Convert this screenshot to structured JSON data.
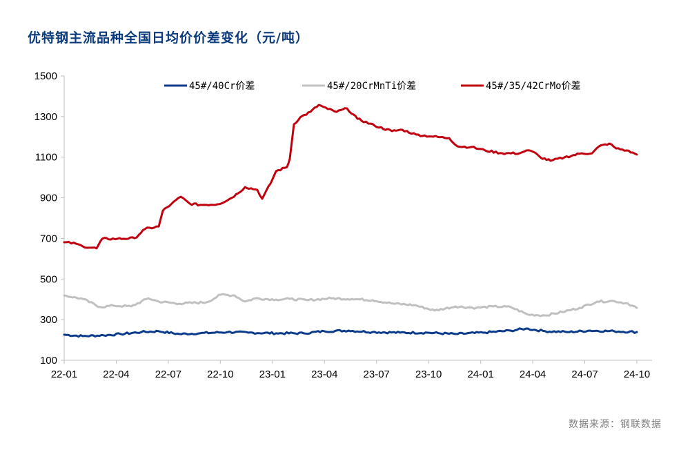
{
  "title": "优特钢主流品种全国日均价价差变化（元/吨）",
  "source": "数据来源：钢联数据",
  "colors": {
    "series_1": "#0b3b8a",
    "series_2": "#c0c0c0",
    "series_3": "#c0000f",
    "axis": "#bfbfbf",
    "title": "#0b3b7d",
    "source": "#7f7f7f"
  },
  "legend": [
    {
      "label": "45#/40Cr价差",
      "color": "#0b3b8a"
    },
    {
      "label": "45#/20CrMnTi价差",
      "color": "#c0c0c0"
    },
    {
      "label": "45#/35/42CrMo价差",
      "color": "#c0000f"
    }
  ],
  "y_ticks": [
    "1500",
    "1300",
    "1100",
    "900",
    "700",
    "500",
    "300",
    "100"
  ],
  "x_ticks": [
    "22-01",
    "22-04",
    "22-07",
    "22-10",
    "23-01",
    "23-04",
    "23-07",
    "23-10",
    "24-01",
    "24-04",
    "24-07",
    "24-10"
  ],
  "chart_data": {
    "type": "line",
    "title": "优特钢主流品种全国日均价价差变化（元/吨）",
    "xlabel": "",
    "ylabel": "元/吨",
    "ylim": [
      100,
      1500
    ],
    "y_ticks": [
      100,
      300,
      500,
      700,
      900,
      1100,
      1300,
      1500
    ],
    "x_tick_labels": [
      "22-01",
      "22-04",
      "22-07",
      "22-10",
      "23-01",
      "23-04",
      "23-07",
      "23-10",
      "24-01",
      "24-04",
      "24-07",
      "24-10"
    ],
    "x_unit": "months since 2022-01",
    "grid": false,
    "legend_position": "top",
    "source": "数据来源：钢联数据",
    "series": [
      {
        "name": "45#/40Cr价差",
        "color": "#0b3b8a",
        "x": [
          0,
          1.07,
          2.27,
          3.26,
          4.45,
          5.45,
          6.64,
          7.83,
          9.42,
          10.62,
          12.21,
          13.8,
          14.99,
          16.38,
          17.77,
          19.36,
          20.95,
          22.55,
          24.14,
          25.73,
          26.6,
          27.72,
          29.11,
          30.3,
          31.69,
          33.0
        ],
        "values": [
          226,
          219,
          223,
          229,
          239,
          243,
          229,
          233,
          239,
          236,
          233,
          233,
          243,
          246,
          239,
          236,
          236,
          229,
          236,
          246,
          256,
          243,
          239,
          246,
          243,
          239
        ]
      },
      {
        "name": "45#/20CrMnTi价差",
        "color": "#c0c0c0",
        "x": [
          0,
          1.07,
          2.07,
          2.86,
          3.86,
          4.85,
          5.45,
          6.64,
          8.23,
          9.03,
          9.82,
          10.42,
          11.01,
          12.21,
          13.0,
          13.99,
          15.39,
          16.58,
          17.77,
          18.96,
          20.16,
          21.35,
          22.55,
          23.74,
          24.73,
          25.73,
          26.72,
          27.71,
          28.71,
          29.7,
          30.7,
          31.69,
          32.49,
          33.0
        ],
        "values": [
          419,
          402,
          362,
          369,
          365,
          405,
          389,
          379,
          386,
          423,
          419,
          389,
          405,
          399,
          402,
          396,
          405,
          402,
          396,
          379,
          372,
          345,
          365,
          358,
          365,
          362,
          325,
          321,
          338,
          358,
          389,
          392,
          379,
          358
        ]
      },
      {
        "name": "45#/35/42CrMo价差",
        "color": "#c0000f",
        "x": [
          0,
          0.68,
          1.07,
          1.87,
          2.19,
          3.06,
          4.06,
          4.65,
          5.45,
          5.69,
          6.16,
          6.72,
          7.24,
          7.83,
          8.83,
          9.42,
          10.02,
          10.42,
          11.13,
          11.41,
          11.89,
          12.21,
          12.84,
          13.0,
          13.24,
          13.6,
          14.19,
          14.67,
          15.19,
          15.7,
          16.3,
          16.9,
          17.89,
          18.89,
          19.48,
          20.28,
          21.27,
          22.19,
          22.67,
          23.46,
          24.26,
          25.25,
          26.25,
          26.64,
          27.04,
          27.44,
          28.04,
          28.83,
          29.82,
          30.42,
          30.82,
          31.41,
          31.81,
          32.41,
          33.0
        ],
        "values": [
          681,
          674,
          661,
          651,
          698,
          698,
          701,
          746,
          759,
          837,
          868,
          905,
          871,
          865,
          868,
          888,
          922,
          953,
          939,
          895,
          970,
          1031,
          1051,
          1092,
          1262,
          1296,
          1323,
          1357,
          1337,
          1323,
          1340,
          1289,
          1255,
          1228,
          1235,
          1211,
          1201,
          1194,
          1153,
          1150,
          1133,
          1119,
          1119,
          1133,
          1126,
          1099,
          1082,
          1099,
          1119,
          1119,
          1153,
          1167,
          1143,
          1133,
          1113
        ]
      }
    ]
  }
}
